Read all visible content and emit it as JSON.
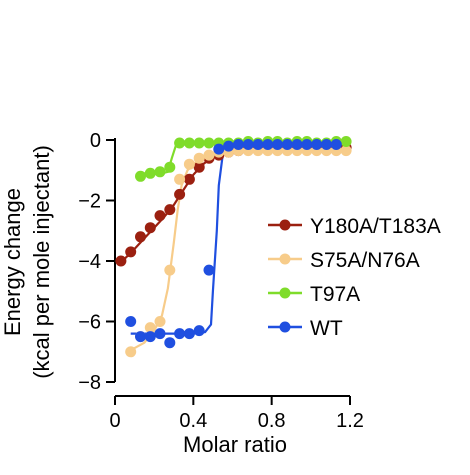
{
  "chart_data": {
    "type": "scatter",
    "xlabel": "Molar ratio",
    "ylabel": [
      "Energy change",
      "(kcal per mole injectant)"
    ],
    "xlim": [
      0,
      1.2
    ],
    "ylim": [
      -8,
      0
    ],
    "xticks": [
      0,
      0.4,
      0.8,
      1.2
    ],
    "xtick_labels": [
      "0",
      "0.4",
      "0.8",
      "1.2"
    ],
    "yticks": [
      0,
      -2,
      -4,
      -6,
      -8
    ],
    "ytick_labels": [
      "0",
      "−2",
      "−4",
      "−6",
      "−8"
    ],
    "grid": false,
    "legend_position": "right",
    "series": [
      {
        "name": "Y180A/T183A",
        "color": "#9b2010",
        "x": [
          0.03,
          0.08,
          0.13,
          0.18,
          0.23,
          0.28,
          0.33,
          0.38,
          0.43,
          0.48,
          0.53,
          0.58,
          0.63,
          0.68,
          0.73,
          0.78,
          0.83,
          0.88,
          0.93,
          0.98,
          1.03,
          1.08,
          1.13,
          1.18
        ],
        "y": [
          -4.0,
          -3.7,
          -3.2,
          -2.9,
          -2.5,
          -2.3,
          -1.8,
          -1.3,
          -0.9,
          -0.6,
          -0.5,
          -0.4,
          -0.35,
          -0.3,
          -0.3,
          -0.3,
          -0.3,
          -0.25,
          -0.25,
          -0.25,
          -0.25,
          -0.25,
          -0.25,
          -0.25
        ],
        "fit": [
          [
            0.03,
            -4.05
          ],
          [
            0.1,
            -3.6
          ],
          [
            0.15,
            -3.25
          ],
          [
            0.2,
            -2.9
          ],
          [
            0.25,
            -2.55
          ],
          [
            0.3,
            -2.15
          ],
          [
            0.35,
            -1.65
          ],
          [
            0.4,
            -1.15
          ],
          [
            0.45,
            -0.8
          ],
          [
            0.5,
            -0.55
          ],
          [
            0.55,
            -0.42
          ],
          [
            0.6,
            -0.35
          ],
          [
            0.7,
            -0.3
          ],
          [
            0.85,
            -0.28
          ],
          [
            1.0,
            -0.27
          ],
          [
            1.18,
            -0.27
          ]
        ]
      },
      {
        "name": "S75A/N76A",
        "color": "#f7cc8a",
        "x": [
          0.08,
          0.13,
          0.18,
          0.23,
          0.28,
          0.33,
          0.38,
          0.43,
          0.48,
          0.53,
          0.58,
          0.63,
          0.68,
          0.73,
          0.78,
          0.83,
          0.88,
          0.93,
          0.98,
          1.03,
          1.08,
          1.13,
          1.18
        ],
        "y": [
          -7.0,
          -6.5,
          -6.2,
          -6.0,
          -4.3,
          -1.3,
          -0.8,
          -0.6,
          -0.5,
          -0.4,
          -0.4,
          -0.35,
          -0.35,
          -0.35,
          -0.35,
          -0.35,
          -0.35,
          -0.35,
          -0.35,
          -0.35,
          -0.35,
          -0.35,
          -0.35
        ],
        "fit": [
          [
            0.08,
            -6.95
          ],
          [
            0.15,
            -6.7
          ],
          [
            0.2,
            -6.3
          ],
          [
            0.24,
            -5.8
          ],
          [
            0.27,
            -4.9
          ],
          [
            0.3,
            -3.4
          ],
          [
            0.32,
            -2.3
          ],
          [
            0.34,
            -1.5
          ],
          [
            0.37,
            -1.0
          ],
          [
            0.42,
            -0.7
          ],
          [
            0.5,
            -0.5
          ],
          [
            0.6,
            -0.4
          ],
          [
            0.8,
            -0.35
          ],
          [
            1.0,
            -0.35
          ],
          [
            1.18,
            -0.35
          ]
        ]
      },
      {
        "name": "T97A",
        "color": "#7fdc2a",
        "x": [
          0.13,
          0.18,
          0.23,
          0.28,
          0.33,
          0.38,
          0.43,
          0.48,
          0.53,
          0.58,
          0.63,
          0.68,
          0.73,
          0.78,
          0.83,
          0.88,
          0.93,
          0.98,
          1.03,
          1.08,
          1.13,
          1.18
        ],
        "y": [
          -1.2,
          -1.1,
          -1.05,
          -0.9,
          -0.1,
          -0.1,
          -0.1,
          -0.1,
          -0.1,
          -0.1,
          -0.1,
          -0.05,
          -0.1,
          -0.05,
          -0.05,
          -0.1,
          -0.05,
          -0.05,
          -0.1,
          -0.1,
          -0.05,
          -0.05
        ],
        "fit": [
          [
            0.13,
            -1.1
          ],
          [
            0.24,
            -1.1
          ],
          [
            0.27,
            -1.05
          ],
          [
            0.29,
            -0.6
          ],
          [
            0.31,
            -0.2
          ],
          [
            0.33,
            -0.1
          ],
          [
            0.4,
            -0.1
          ],
          [
            0.6,
            -0.1
          ],
          [
            0.9,
            -0.1
          ],
          [
            1.18,
            -0.1
          ]
        ]
      },
      {
        "name": "WT",
        "color": "#1f4fe0",
        "x": [
          0.08,
          0.13,
          0.18,
          0.23,
          0.28,
          0.33,
          0.38,
          0.43,
          0.48,
          0.53,
          0.58,
          0.63,
          0.68,
          0.73,
          0.78,
          0.83,
          0.88,
          0.93,
          0.98,
          1.03,
          1.08,
          1.13
        ],
        "y": [
          -6.0,
          -6.5,
          -6.5,
          -6.4,
          -6.7,
          -6.4,
          -6.4,
          -6.3,
          -4.3,
          -0.3,
          -0.2,
          -0.15,
          -0.15,
          -0.15,
          -0.15,
          -0.15,
          -0.15,
          -0.15,
          -0.15,
          -0.15,
          -0.15,
          -0.15
        ],
        "fit": [
          [
            0.08,
            -6.4
          ],
          [
            0.2,
            -6.4
          ],
          [
            0.4,
            -6.4
          ],
          [
            0.46,
            -6.35
          ],
          [
            0.49,
            -6.1
          ],
          [
            0.5,
            -5.0
          ],
          [
            0.52,
            -3.0
          ],
          [
            0.53,
            -1.5
          ],
          [
            0.55,
            -0.5
          ],
          [
            0.58,
            -0.25
          ],
          [
            0.7,
            -0.15
          ],
          [
            0.9,
            -0.15
          ],
          [
            1.13,
            -0.15
          ]
        ]
      }
    ]
  }
}
